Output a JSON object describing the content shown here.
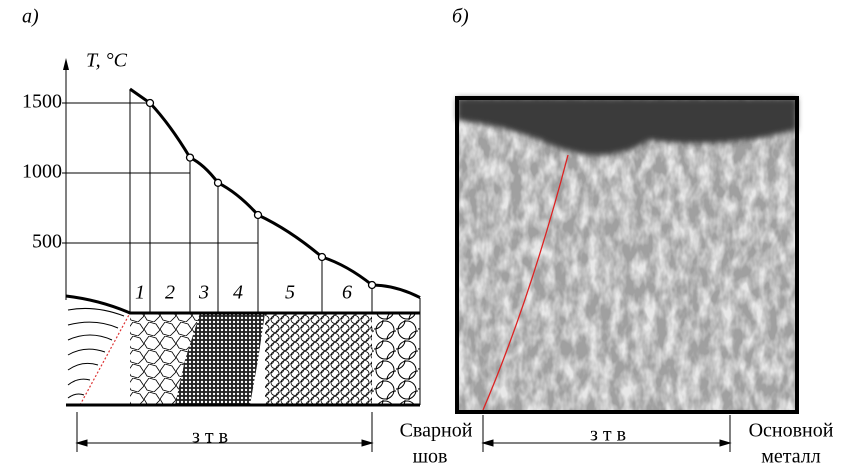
{
  "panels": [
    {
      "label": "а)"
    },
    {
      "label": "б)"
    }
  ],
  "temperature_axis": {
    "label": "T, °C",
    "ticks": [
      500,
      1000,
      1500
    ]
  },
  "curve": {
    "values": [
      1600,
      1500,
      1110,
      930,
      700,
      400,
      200,
      110
    ]
  },
  "zones": [
    "1",
    "2",
    "3",
    "4",
    "5",
    "6"
  ],
  "bottom": {
    "haz_left": "з т в",
    "weld": [
      "Сварной",
      "шов"
    ],
    "haz_right": "з т в",
    "base": [
      "Основной",
      "металл"
    ]
  }
}
